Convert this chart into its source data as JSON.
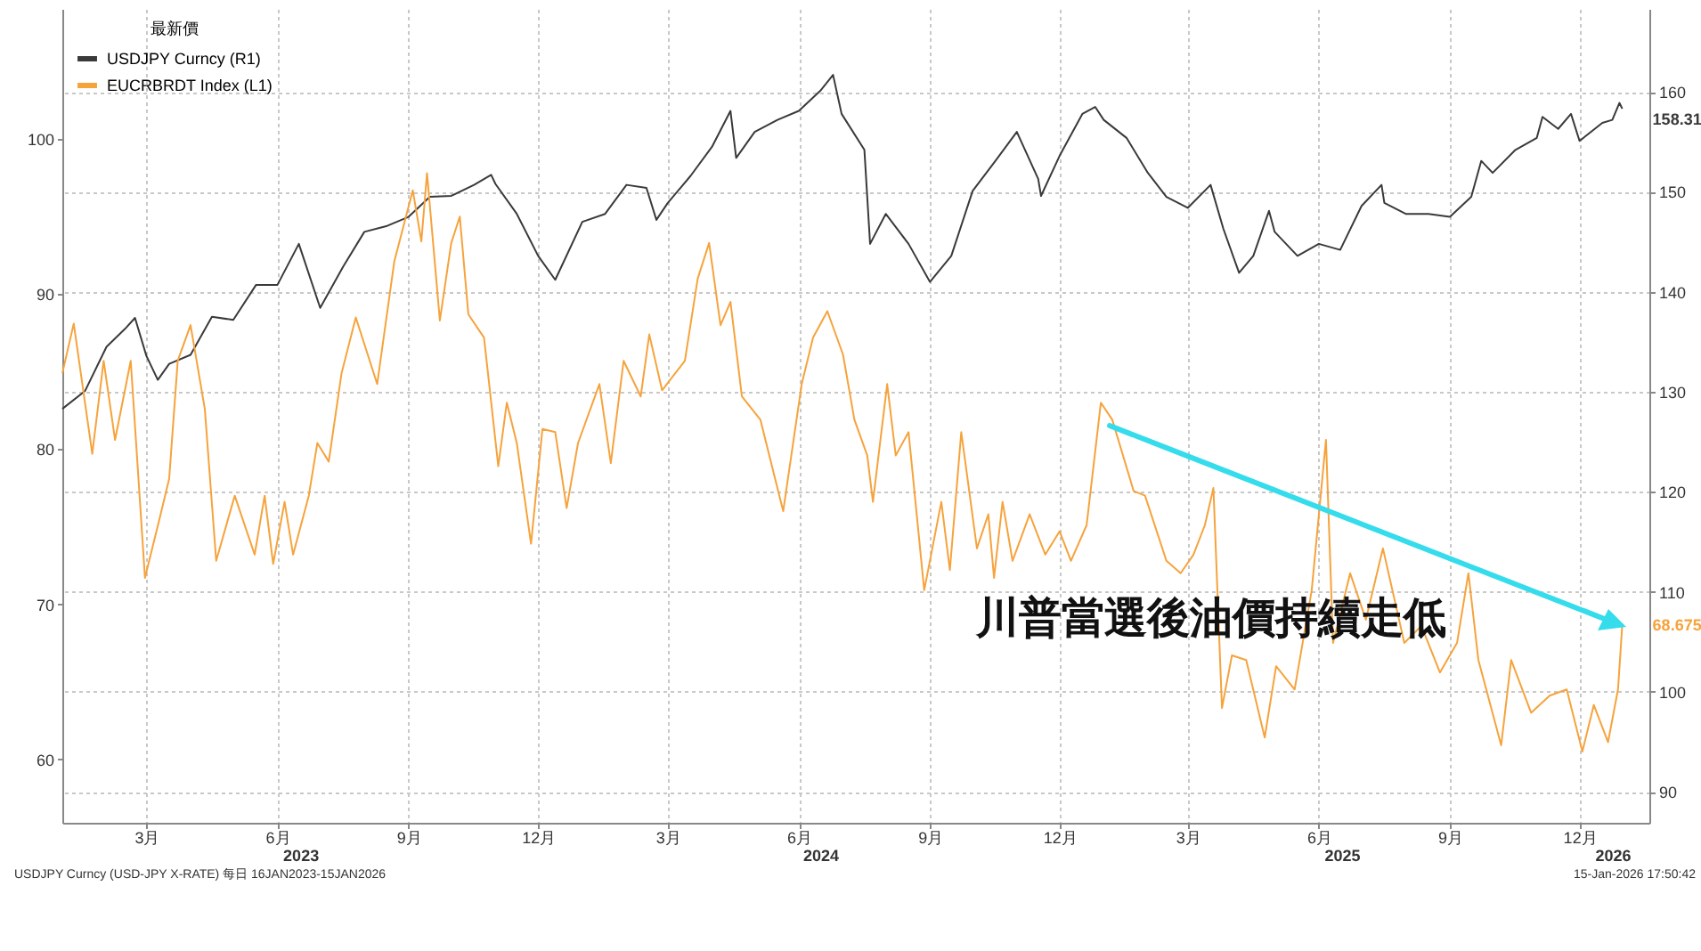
{
  "chart_data": {
    "type": "line",
    "legend_title": "最新價",
    "legend": "top left",
    "grid": true,
    "xlim": [
      "2023-01-16",
      "2026-02-03"
    ],
    "xticks": [
      {
        "value": "2023-03-16",
        "label": "3月"
      },
      {
        "value": "2023-06-16",
        "label": "6月"
      },
      {
        "value": "2023-09-16",
        "label": "9月"
      },
      {
        "value": "2023-12-16",
        "label": "12月"
      },
      {
        "value": "2024-03-16",
        "label": "3月"
      },
      {
        "value": "2024-06-16",
        "label": "6月"
      },
      {
        "value": "2024-09-16",
        "label": "9月"
      },
      {
        "value": "2024-12-16",
        "label": "12月"
      },
      {
        "value": "2025-03-16",
        "label": "3月"
      },
      {
        "value": "2025-06-16",
        "label": "6月"
      },
      {
        "value": "2025-09-16",
        "label": "9月"
      },
      {
        "value": "2025-12-16",
        "label": "12月"
      }
    ],
    "x2lim": [
      "2023-01-16",
      "2026-02-03"
    ],
    "x2ticks": [
      {
        "value": "2023-07-02",
        "label": "2023"
      },
      {
        "value": "2024-07-01",
        "label": "2024"
      },
      {
        "value": "2025-07-02",
        "label": "2025"
      },
      {
        "value": "2026-01-08",
        "label": "2026"
      }
    ],
    "ylim": [
      55.9,
      108.4
    ],
    "yticks": [
      60,
      70,
      80,
      90,
      100
    ],
    "y2lim": [
      86.9,
      168.3
    ],
    "y2ticks": [
      90,
      100,
      110,
      120,
      130,
      140,
      150,
      160
    ],
    "annotations": [
      "川普當選後油價持續走低",
      "USDJPY Curncy (USD-JPY X-RATE) 每日 16JAN2023-15JAN2026",
      "15-Jan-2026 17:50:42"
    ],
    "series": [
      {
        "name": "USDJPY Curncy (R1)",
        "color": "#3a3a3a",
        "axis": "y2",
        "x": [
          "2023-01-16",
          "2023-02-01",
          "2023-02-16",
          "2023-03-01",
          "2023-03-08",
          "2023-03-16",
          "2023-03-24",
          "2023-04-01",
          "2023-04-16",
          "2023-05-01",
          "2023-05-16",
          "2023-06-01",
          "2023-06-16",
          "2023-07-01",
          "2023-07-16",
          "2023-08-01",
          "2023-08-16",
          "2023-09-01",
          "2023-09-16",
          "2023-10-01",
          "2023-10-16",
          "2023-11-01",
          "2023-11-13",
          "2023-11-16",
          "2023-12-01",
          "2023-12-16",
          "2023-12-28",
          "2024-01-16",
          "2024-02-01",
          "2024-02-16",
          "2024-03-01",
          "2024-03-08",
          "2024-03-16",
          "2024-04-01",
          "2024-04-16",
          "2024-04-29",
          "2024-05-03",
          "2024-05-16",
          "2024-06-01",
          "2024-06-16",
          "2024-07-01",
          "2024-07-10",
          "2024-07-16",
          "2024-08-01",
          "2024-08-05",
          "2024-08-16",
          "2024-09-01",
          "2024-09-16",
          "2024-10-01",
          "2024-10-16",
          "2024-11-01",
          "2024-11-16",
          "2024-12-01",
          "2024-12-03",
          "2024-12-16",
          "2025-01-01",
          "2025-01-10",
          "2025-01-16",
          "2025-02-01",
          "2025-02-16",
          "2025-03-01",
          "2025-03-16",
          "2025-04-01",
          "2025-04-10",
          "2025-04-21",
          "2025-05-01",
          "2025-05-12",
          "2025-05-16",
          "2025-06-01",
          "2025-06-16",
          "2025-07-01",
          "2025-07-16",
          "2025-07-30",
          "2025-08-01",
          "2025-08-16",
          "2025-09-01",
          "2025-09-16",
          "2025-10-01",
          "2025-10-08",
          "2025-10-16",
          "2025-11-01",
          "2025-11-16",
          "2025-11-20",
          "2025-12-01",
          "2025-12-10",
          "2025-12-16",
          "2026-01-01",
          "2026-01-08",
          "2026-01-13",
          "2026-01-15"
        ],
        "values": [
          128.3,
          130.1,
          134.5,
          136.3,
          137.4,
          133.6,
          131.2,
          132.8,
          133.7,
          137.5,
          137.2,
          140.7,
          140.7,
          144.8,
          138.4,
          142.5,
          146.0,
          146.6,
          147.5,
          149.5,
          149.6,
          150.7,
          151.7,
          150.8,
          147.8,
          143.6,
          141.2,
          147.0,
          147.8,
          150.7,
          150.4,
          147.2,
          148.9,
          151.6,
          154.5,
          158.1,
          153.4,
          156.0,
          157.2,
          158.1,
          160.1,
          161.7,
          157.8,
          154.2,
          144.8,
          147.8,
          144.8,
          141.0,
          143.6,
          150.1,
          153.1,
          156.0,
          151.3,
          149.6,
          153.6,
          157.8,
          158.5,
          157.2,
          155.4,
          151.9,
          149.5,
          148.4,
          150.7,
          146.3,
          141.9,
          143.6,
          148.1,
          146.0,
          143.6,
          144.8,
          144.2,
          148.6,
          150.7,
          148.9,
          147.8,
          147.8,
          147.5,
          149.5,
          153.1,
          151.9,
          154.2,
          155.4,
          157.5,
          156.3,
          157.8,
          155.1,
          156.9,
          157.2,
          158.9,
          158.31
        ],
        "value_labels": [
          null,
          null,
          null,
          null,
          null,
          null,
          null,
          null,
          null,
          null,
          null,
          null,
          null,
          null,
          null,
          null,
          null,
          null,
          null,
          null,
          null,
          null,
          null,
          null,
          null,
          null,
          null,
          null,
          null,
          null,
          null,
          null,
          null,
          null,
          null,
          null,
          null,
          null,
          null,
          null,
          null,
          null,
          null,
          null,
          null,
          null,
          null,
          null,
          null,
          null,
          null,
          null,
          null,
          null,
          null,
          null,
          null,
          null,
          null,
          null,
          null,
          null,
          null,
          null,
          null,
          null,
          null,
          null,
          null,
          null,
          null,
          null,
          null,
          null,
          null,
          null,
          null,
          null,
          null,
          null,
          null,
          null,
          null,
          null,
          null,
          null,
          null,
          null,
          null,
          "158.31"
        ]
      },
      {
        "name": "EUCRBRDT Index (L1)",
        "color": "#f6a33c",
        "x": [
          "2023-01-16",
          "2023-01-24",
          "2023-02-06",
          "2023-02-14",
          "2023-02-22",
          "2023-03-05",
          "2023-03-15",
          "2023-03-26",
          "2023-04-01",
          "2023-04-07",
          "2023-04-16",
          "2023-04-26",
          "2023-05-04",
          "2023-05-17",
          "2023-05-31",
          "2023-06-07",
          "2023-06-13",
          "2023-06-21",
          "2023-06-27",
          "2023-07-08",
          "2023-07-14",
          "2023-07-22",
          "2023-07-31",
          "2023-08-10",
          "2023-08-25",
          "2023-09-06",
          "2023-09-19",
          "2023-09-25",
          "2023-09-29",
          "2023-10-08",
          "2023-10-16",
          "2023-10-22",
          "2023-10-28",
          "2023-11-08",
          "2023-11-18",
          "2023-11-24",
          "2023-12-01",
          "2023-12-11",
          "2023-12-19",
          "2023-12-28",
          "2024-01-05",
          "2024-01-13",
          "2024-01-28",
          "2024-02-05",
          "2024-02-14",
          "2024-02-26",
          "2024-03-03",
          "2024-03-12",
          "2024-03-28",
          "2024-04-06",
          "2024-04-14",
          "2024-04-22",
          "2024-04-29",
          "2024-05-07",
          "2024-05-20",
          "2024-06-05",
          "2024-06-18",
          "2024-06-26",
          "2024-07-06",
          "2024-07-17",
          "2024-07-25",
          "2024-08-03",
          "2024-08-07",
          "2024-08-17",
          "2024-08-23",
          "2024-09-01",
          "2024-09-12",
          "2024-09-24",
          "2024-09-30",
          "2024-10-08",
          "2024-10-19",
          "2024-10-27",
          "2024-10-31",
          "2024-11-06",
          "2024-11-13",
          "2024-11-25",
          "2024-12-06",
          "2024-12-16",
          "2024-12-24",
          "2025-01-04",
          "2025-01-14",
          "2025-01-22",
          "2025-02-06",
          "2025-02-14",
          "2025-03-01",
          "2025-03-11",
          "2025-03-20",
          "2025-03-28",
          "2025-04-03",
          "2025-04-09",
          "2025-04-16",
          "2025-04-26",
          "2025-05-09",
          "2025-05-17",
          "2025-05-30",
          "2025-06-11",
          "2025-06-21",
          "2025-06-26",
          "2025-07-08",
          "2025-07-19",
          "2025-07-31",
          "2025-08-15",
          "2025-08-27",
          "2025-09-09",
          "2025-09-21",
          "2025-09-29",
          "2025-10-06",
          "2025-10-22",
          "2025-10-29",
          "2025-11-12",
          "2025-11-25",
          "2025-12-07",
          "2025-12-18",
          "2025-12-26",
          "2026-01-05",
          "2026-01-12",
          "2026-01-15"
        ],
        "values": [
          84.9,
          88.1,
          79.7,
          85.7,
          80.6,
          85.7,
          71.7,
          75.8,
          78.1,
          85.7,
          88.0,
          82.6,
          72.8,
          77.0,
          73.2,
          77.0,
          72.6,
          76.6,
          73.2,
          77.0,
          80.4,
          79.2,
          84.9,
          88.5,
          84.2,
          92.1,
          96.7,
          93.4,
          97.8,
          88.3,
          93.3,
          95.0,
          88.7,
          87.2,
          78.9,
          83.0,
          80.4,
          73.9,
          81.3,
          81.1,
          76.2,
          80.4,
          84.2,
          79.1,
          85.7,
          83.4,
          87.4,
          83.8,
          85.7,
          91.0,
          93.3,
          88.0,
          89.5,
          83.4,
          81.9,
          76.0,
          84.2,
          87.2,
          88.9,
          86.1,
          81.9,
          79.6,
          76.6,
          84.2,
          79.6,
          81.1,
          70.9,
          76.6,
          72.2,
          81.1,
          73.6,
          75.8,
          71.7,
          76.6,
          72.8,
          75.8,
          73.2,
          74.7,
          72.8,
          75.1,
          83.0,
          81.9,
          77.3,
          77.0,
          72.8,
          72.0,
          73.2,
          75.1,
          77.5,
          63.3,
          66.7,
          66.4,
          61.4,
          66.0,
          64.5,
          70.9,
          80.6,
          67.5,
          72.0,
          69.0,
          73.6,
          67.5,
          68.6,
          65.6,
          67.5,
          72.0,
          66.4,
          60.9,
          66.4,
          63.0,
          64.1,
          64.5,
          60.5,
          63.5,
          61.1,
          64.5,
          68.675
        ],
        "value_labels": [
          null,
          null,
          null,
          null,
          null,
          null,
          null,
          null,
          null,
          null,
          null,
          null,
          null,
          null,
          null,
          null,
          null,
          null,
          null,
          null,
          null,
          null,
          null,
          null,
          null,
          null,
          null,
          null,
          null,
          null,
          null,
          null,
          null,
          null,
          null,
          null,
          null,
          null,
          null,
          null,
          null,
          null,
          null,
          null,
          null,
          null,
          null,
          null,
          null,
          null,
          null,
          null,
          null,
          null,
          null,
          null,
          null,
          null,
          null,
          null,
          null,
          null,
          null,
          null,
          null,
          null,
          null,
          null,
          null,
          null,
          null,
          null,
          null,
          null,
          null,
          null,
          null,
          null,
          null,
          null,
          null,
          null,
          null,
          null,
          null,
          null,
          null,
          null,
          null,
          null,
          null,
          null,
          null,
          null,
          null,
          null,
          null,
          null,
          null,
          null,
          null,
          null,
          null,
          null,
          null,
          null,
          null,
          null,
          null,
          null,
          null,
          null,
          null,
          null,
          null,
          null,
          "68.675"
        ]
      }
    ]
  }
}
